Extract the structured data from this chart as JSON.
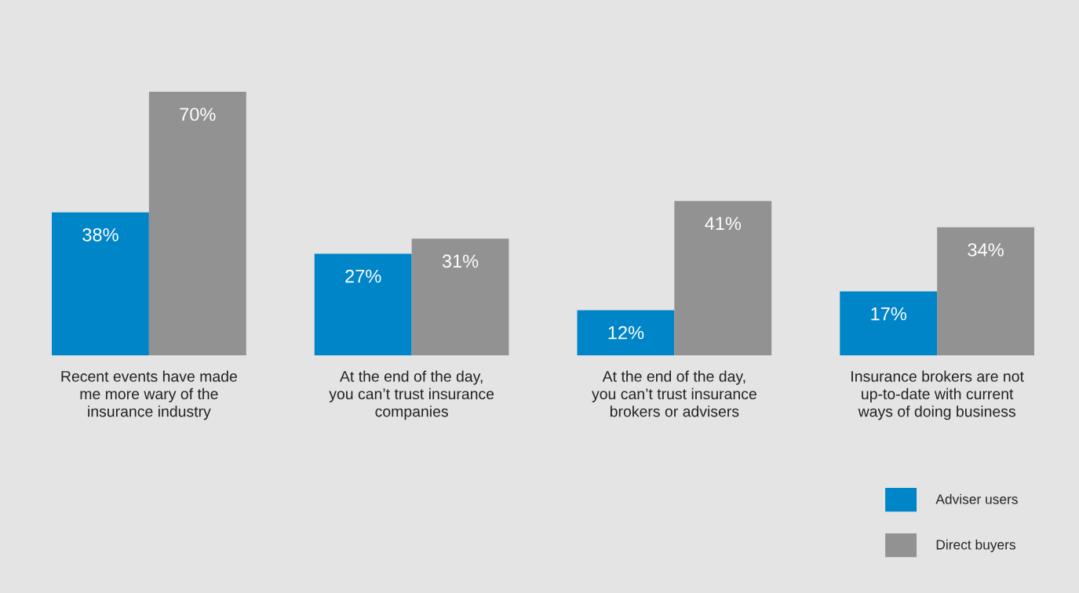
{
  "chart_data": {
    "type": "bar",
    "categories": [
      "Recent events have made\nme more wary of the\ninsurance industry",
      "At the end of the day,\nyou can’t trust insurance\ncompanies",
      "At the end of the day,\nyou can’t trust insurance\nbrokers or advisers",
      "Insurance brokers are not\nup-to-date with current\nways of doing business"
    ],
    "series": [
      {
        "name": "Adviser users",
        "color": "#0085c8",
        "values": [
          38,
          27,
          12,
          17
        ],
        "value_labels": [
          "38%",
          "27%",
          "12%",
          "17%"
        ]
      },
      {
        "name": "Direct buyers",
        "color": "#929292",
        "values": [
          70,
          31,
          41,
          34
        ],
        "value_labels": [
          "70%",
          "31%",
          "41%",
          "34%"
        ]
      }
    ],
    "legend": "bottom right",
    "grid": false
  }
}
